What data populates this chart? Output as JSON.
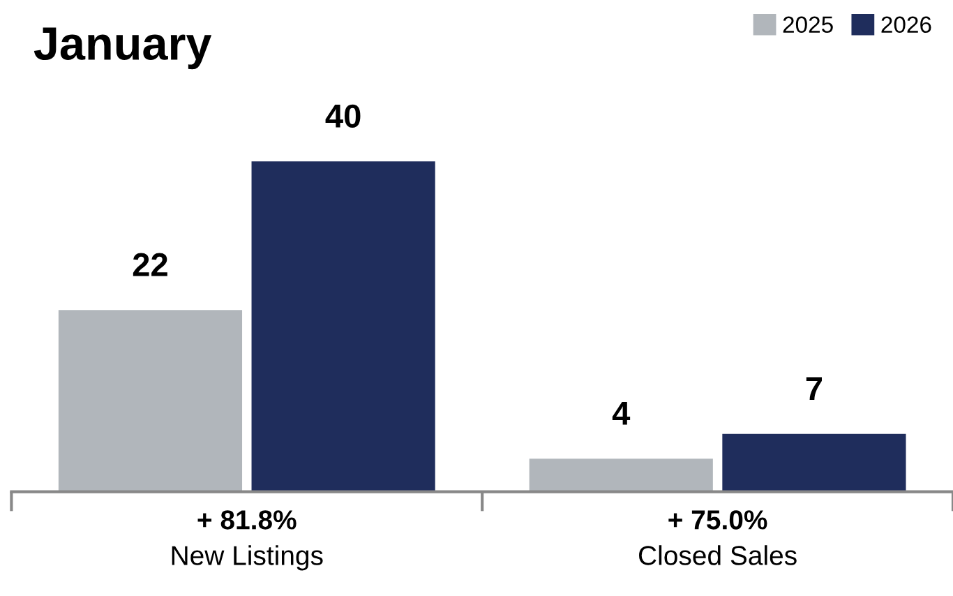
{
  "chart_data": {
    "type": "bar",
    "title": "January",
    "categories": [
      "New Listings",
      "Closed Sales"
    ],
    "series": [
      {
        "name": "2025",
        "color": "#b1b6bb",
        "values": [
          22,
          4
        ]
      },
      {
        "name": "2026",
        "color": "#1f2d5c",
        "values": [
          40,
          7
        ]
      }
    ],
    "data_labels": true,
    "legend": "top right",
    "grid": false,
    "annotations": [
      "+ 81.8%",
      "+ 75.0%"
    ]
  }
}
